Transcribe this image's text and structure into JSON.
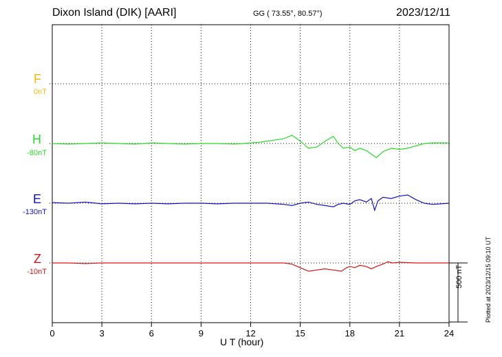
{
  "header": {
    "title": "Dixon Island (DIK)  [AARI]",
    "coords": "GG ( 73.55°,  80.57°)",
    "date": "2023/12/11"
  },
  "chart_data": {
    "type": "line",
    "xlabel": "U T (hour)",
    "xlim": [
      0,
      24
    ],
    "x_ticks": [
      "0",
      "3",
      "6",
      "9",
      "12",
      "15",
      "18",
      "21",
      "24"
    ],
    "scale_bar": "500 nT",
    "channels": [
      {
        "name": "F",
        "baseline": "0nT",
        "color": "#f5b800",
        "points": []
      },
      {
        "name": "H",
        "baseline": "-80nT",
        "color": "#22dd22",
        "points": [
          [
            0,
            0
          ],
          [
            1,
            -5
          ],
          [
            2,
            0
          ],
          [
            3,
            5
          ],
          [
            4,
            0
          ],
          [
            5,
            -5
          ],
          [
            6,
            5
          ],
          [
            7,
            0
          ],
          [
            8,
            -5
          ],
          [
            9,
            0
          ],
          [
            10,
            0
          ],
          [
            11,
            -5
          ],
          [
            12,
            5
          ],
          [
            12.5,
            10
          ],
          [
            13,
            20
          ],
          [
            13.5,
            30
          ],
          [
            14,
            40
          ],
          [
            14.5,
            70
          ],
          [
            15,
            20
          ],
          [
            15.5,
            -40
          ],
          [
            16,
            -30
          ],
          [
            16.5,
            20
          ],
          [
            17,
            60
          ],
          [
            17.3,
            0
          ],
          [
            17.6,
            -40
          ],
          [
            18,
            -30
          ],
          [
            18.3,
            -60
          ],
          [
            18.6,
            -40
          ],
          [
            19,
            -60
          ],
          [
            19.3,
            -90
          ],
          [
            19.6,
            -120
          ],
          [
            20,
            -70
          ],
          [
            20.5,
            -40
          ],
          [
            21,
            -50
          ],
          [
            21.5,
            -40
          ],
          [
            22,
            -20
          ],
          [
            22.5,
            0
          ],
          [
            23,
            5
          ],
          [
            24,
            5
          ]
        ]
      },
      {
        "name": "E",
        "baseline": "-130nT",
        "color": "#1010cc",
        "points": [
          [
            0,
            5
          ],
          [
            1,
            0
          ],
          [
            2,
            10
          ],
          [
            3,
            -5
          ],
          [
            4,
            0
          ],
          [
            5,
            -5
          ],
          [
            6,
            0
          ],
          [
            7,
            -5
          ],
          [
            8,
            0
          ],
          [
            9,
            0
          ],
          [
            10,
            -5
          ],
          [
            11,
            0
          ],
          [
            12,
            0
          ],
          [
            13,
            0
          ],
          [
            14,
            -10
          ],
          [
            14.5,
            -20
          ],
          [
            15,
            0
          ],
          [
            15.5,
            10
          ],
          [
            16,
            -10
          ],
          [
            16.5,
            -20
          ],
          [
            17,
            -30
          ],
          [
            17.3,
            -10
          ],
          [
            17.6,
            0
          ],
          [
            18,
            -10
          ],
          [
            18.3,
            20
          ],
          [
            18.6,
            30
          ],
          [
            19,
            10
          ],
          [
            19.3,
            40
          ],
          [
            19.5,
            -60
          ],
          [
            19.7,
            20
          ],
          [
            20,
            50
          ],
          [
            20.5,
            40
          ],
          [
            21,
            60
          ],
          [
            21.5,
            70
          ],
          [
            22,
            30
          ],
          [
            22.5,
            0
          ],
          [
            23,
            -10
          ],
          [
            23.5,
            -5
          ],
          [
            24,
            0
          ]
        ]
      },
      {
        "name": "Z",
        "baseline": "-10nT",
        "color": "#dd1111",
        "points": [
          [
            0,
            0
          ],
          [
            1,
            0
          ],
          [
            2,
            -5
          ],
          [
            3,
            0
          ],
          [
            4,
            0
          ],
          [
            5,
            0
          ],
          [
            6,
            0
          ],
          [
            7,
            0
          ],
          [
            8,
            0
          ],
          [
            9,
            0
          ],
          [
            10,
            0
          ],
          [
            11,
            0
          ],
          [
            12,
            0
          ],
          [
            13,
            0
          ],
          [
            14,
            0
          ],
          [
            14.5,
            -10
          ],
          [
            15,
            -40
          ],
          [
            15.5,
            -70
          ],
          [
            16,
            -60
          ],
          [
            16.5,
            -50
          ],
          [
            17,
            -60
          ],
          [
            17.5,
            -70
          ],
          [
            17.8,
            -40
          ],
          [
            18,
            -30
          ],
          [
            18.3,
            -40
          ],
          [
            18.6,
            -20
          ],
          [
            19,
            -30
          ],
          [
            19.3,
            -50
          ],
          [
            19.6,
            -30
          ],
          [
            20,
            -10
          ],
          [
            20.3,
            10
          ],
          [
            20.6,
            0
          ],
          [
            21,
            5
          ],
          [
            22,
            0
          ],
          [
            23,
            0
          ],
          [
            24,
            0
          ]
        ]
      }
    ]
  },
  "footer": {
    "plotted": "Plotted at 2023/12/15 09:10 UT"
  }
}
